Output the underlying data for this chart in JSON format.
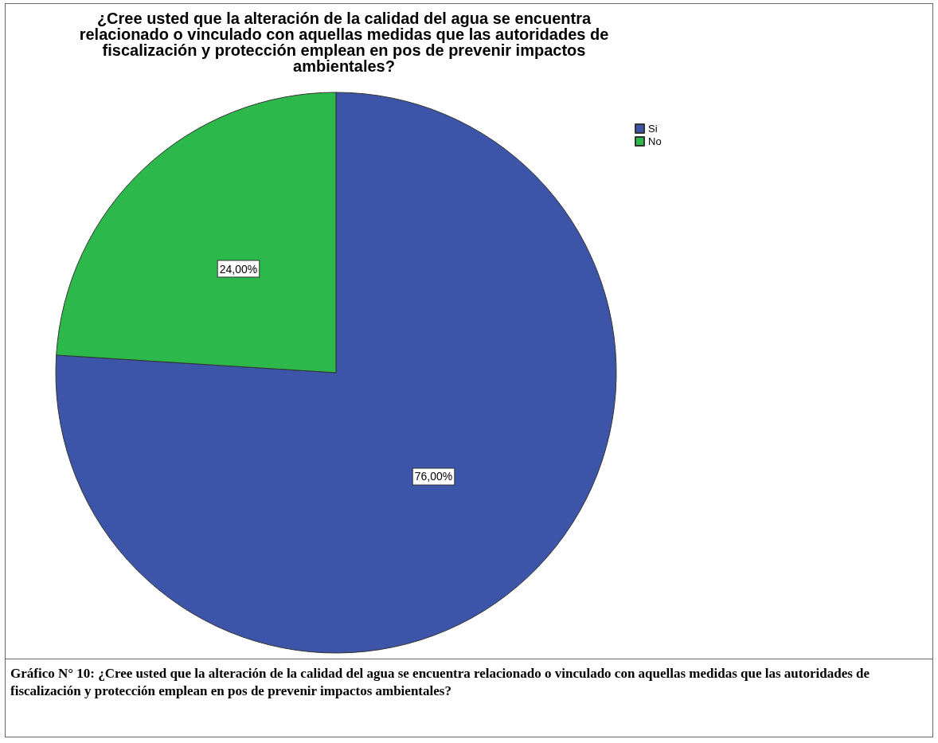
{
  "chart_data": {
    "type": "pie",
    "title": "¿Cree usted que la alteración de la calidad del agua se encuentra relacionado o vinculado con aquellas medidas que las autoridades de fiscalización y protección emplean en pos de prevenir impactos ambientales?",
    "categories": [
      "Si",
      "No"
    ],
    "values": [
      76,
      24
    ],
    "colors": [
      "#3c55a8",
      "#2db84b"
    ],
    "value_labels": [
      "76,00%",
      "24,00%"
    ],
    "legend": "top right",
    "annotations": [
      "Gráfico N° 10: ¿Cree usted que la alteración de la calidad del agua se encuentra relacionado o vinculado con aquellas medidas que las autoridades de fiscalización y protección emplean en pos de prevenir impactos ambientales?"
    ]
  }
}
